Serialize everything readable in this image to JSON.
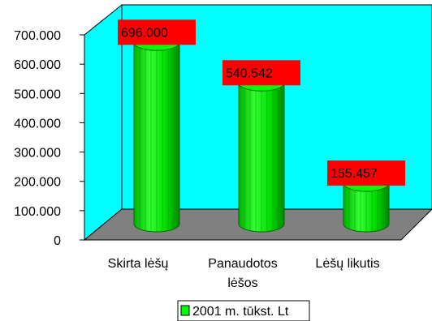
{
  "chart_data": {
    "type": "bar",
    "categories": [
      [
        "Skirta lėšų"
      ],
      [
        "Panaudotos",
        "lėšos"
      ],
      [
        "Lėšų likutis"
      ]
    ],
    "series": [
      {
        "name": "2001 m. tūkst. Lt",
        "values": [
          696.0,
          540.542,
          155.457
        ]
      }
    ],
    "data_labels": [
      "696.000",
      "540.542",
      "155.457"
    ],
    "y_ticks": [
      "0",
      "100.000",
      "200.000",
      "300.000",
      "400.000",
      "500.000",
      "600.000",
      "700.000"
    ],
    "ylim": [
      0,
      700
    ],
    "colors": {
      "wall": "#00ffff",
      "floor": "#808080",
      "bar": "#00ee00",
      "bar_dark": "#009900",
      "label_bg": "#ff0000",
      "legend_swatch": "#00ff00"
    },
    "grid": false,
    "legend_position": "bottom"
  }
}
